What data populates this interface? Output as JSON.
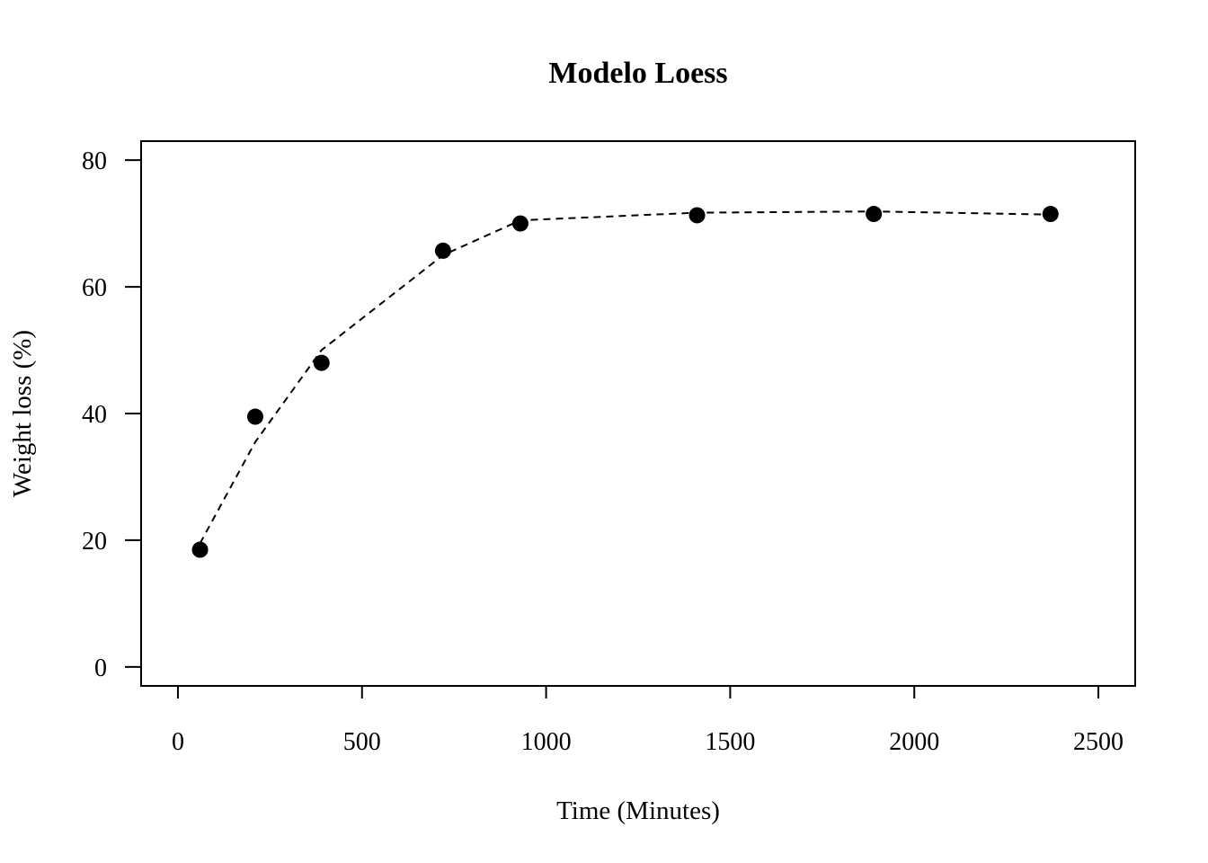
{
  "chart_data": {
    "type": "scatter",
    "title": "Modelo Loess",
    "xlabel": "Time (Minutes)",
    "ylabel": "Weight loss (%)",
    "xlim": [
      -100,
      2600
    ],
    "ylim": [
      -3,
      83
    ],
    "xticks": [
      0,
      500,
      1000,
      1500,
      2000,
      2500
    ],
    "yticks": [
      0,
      20,
      40,
      60,
      80
    ],
    "grid": false,
    "legend": "none",
    "series": [
      {
        "style": "points",
        "marker": "filled-circle",
        "color": "#000000",
        "x": [
          60,
          210,
          390,
          720,
          930,
          1410,
          1890,
          2370
        ],
        "y": [
          18.5,
          39.5,
          48.0,
          65.7,
          70.0,
          71.3,
          71.5,
          71.5
        ]
      },
      {
        "style": "dashed-line",
        "color": "#000000",
        "x": [
          60,
          210,
          390,
          720,
          930,
          1410,
          1890,
          2370
        ],
        "y": [
          19.5,
          35.5,
          50.0,
          65.0,
          70.5,
          71.7,
          71.9,
          71.4
        ]
      }
    ]
  }
}
